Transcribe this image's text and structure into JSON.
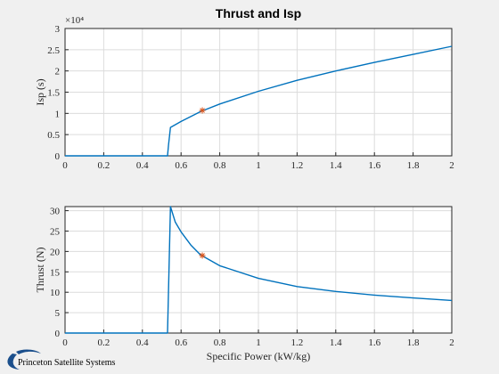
{
  "title": "Thrust and Isp",
  "logo": {
    "text": "Princeton Satellite Systems",
    "color": "#1b4f8c"
  },
  "colors": {
    "line": "#0072bd",
    "marker": "#d95319",
    "axes_bg": "#ffffff",
    "grid": "#dcdcdc",
    "figure_bg": "#f0f0f0"
  },
  "chart_data": [
    {
      "type": "line",
      "ylabel": "Isp (s)",
      "xlabel": "",
      "xlim": [
        0,
        2
      ],
      "ylim": [
        0,
        30000
      ],
      "x_ticks": [
        "0",
        "0.2",
        "0.4",
        "0.6",
        "0.8",
        "1",
        "1.2",
        "1.4",
        "1.6",
        "1.8",
        "2"
      ],
      "y_ticks": [
        "0",
        "0.5",
        "1",
        "1.5",
        "2",
        "2.5",
        "3"
      ],
      "y_exponent": "×10⁴",
      "grid": true,
      "x": [
        0.0,
        0.2,
        0.4,
        0.53,
        0.535,
        0.545,
        0.6,
        0.7,
        0.8,
        1.0,
        1.2,
        1.4,
        1.6,
        1.8,
        2.0
      ],
      "y": [
        0,
        0,
        0,
        0,
        2500,
        6700,
        8100,
        10400,
        12200,
        15200,
        17800,
        20000,
        22000,
        23900,
        25800
      ],
      "marker": {
        "symbol": "*",
        "x": 0.71,
        "y": 10700
      }
    },
    {
      "type": "line",
      "ylabel": "Thrust (N)",
      "xlabel": "Specific Power (kW/kg)",
      "xlim": [
        0,
        2
      ],
      "ylim": [
        0,
        31
      ],
      "x_ticks": [
        "0",
        "0.2",
        "0.4",
        "0.6",
        "0.8",
        "1",
        "1.2",
        "1.4",
        "1.6",
        "1.8",
        "2"
      ],
      "y_ticks": [
        "0",
        "5",
        "10",
        "15",
        "20",
        "25",
        "30"
      ],
      "grid": true,
      "x": [
        0.0,
        0.2,
        0.4,
        0.53,
        0.545,
        0.57,
        0.6,
        0.65,
        0.7,
        0.8,
        1.0,
        1.2,
        1.4,
        1.6,
        1.8,
        2.0
      ],
      "y": [
        0,
        0,
        0,
        0,
        31,
        27.2,
        24.8,
        21.6,
        19.2,
        16.5,
        13.4,
        11.4,
        10.2,
        9.3,
        8.6,
        8.0
      ],
      "marker": {
        "symbol": "*",
        "x": 0.71,
        "y": 19.0
      }
    }
  ]
}
